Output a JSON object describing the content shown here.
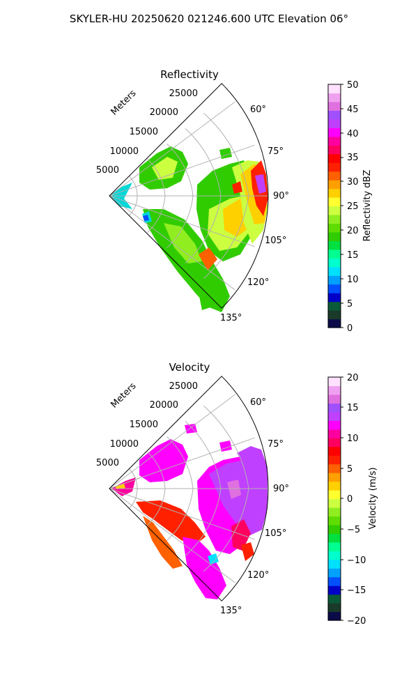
{
  "figure": {
    "suptitle": "SKYLER-HU  20250620  021246.600 UTC Elevation 06°"
  },
  "chart_data": [
    {
      "type": "heatmap",
      "title": "Reflectivity",
      "projection": "polar-sector",
      "radial_label": "Meters",
      "radial_ticks": [
        5000,
        10000,
        15000,
        20000,
        25000
      ],
      "radial_tick_labels": [
        "5000",
        "10000",
        "15000",
        "20000",
        "25000"
      ],
      "rlim": [
        0,
        30000
      ],
      "azimuth_range_deg": [
        45,
        135
      ],
      "angular_ticks_deg": [
        60,
        75,
        90,
        105,
        120,
        135
      ],
      "angular_tick_labels": [
        "60°",
        "75°",
        "90°",
        "105°",
        "120°",
        "135°"
      ],
      "grid": true,
      "colorbar": {
        "label": "Reflectivity dBZ",
        "ticks": [
          0,
          5,
          10,
          15,
          20,
          25,
          30,
          35,
          40,
          45,
          50
        ],
        "tick_labels": [
          "0",
          "5",
          "10",
          "15",
          "20",
          "25",
          "30",
          "35",
          "40",
          "45",
          "50"
        ],
        "range": [
          0,
          50
        ],
        "colors": [
          "#0b0b4a",
          "#1a3a2a",
          "#0a5a3a",
          "#0000c8",
          "#0050ff",
          "#00a0ff",
          "#00e0ff",
          "#00ffcc",
          "#00ff90",
          "#00e040",
          "#30cc00",
          "#60dd00",
          "#90ee20",
          "#ccff40",
          "#ffff30",
          "#ffd000",
          "#ffa000",
          "#ff6000",
          "#ff2000",
          "#ff0000",
          "#ff0060",
          "#ff00a0",
          "#ff00ff",
          "#c040ff",
          "#a050ff",
          "#e070e0",
          "#f0a0f0",
          "#ffe0ff"
        ]
      },
      "cells": [
        {
          "az": 50,
          "r": 3000,
          "v": 14
        },
        {
          "az": 70,
          "r": 9000,
          "v": 18
        },
        {
          "az": 75,
          "r": 20000,
          "v": 30
        },
        {
          "az": 85,
          "r": 24000,
          "v": 42
        },
        {
          "az": 92,
          "r": 26000,
          "v": 38
        },
        {
          "az": 100,
          "r": 18000,
          "v": 28
        },
        {
          "az": 110,
          "r": 14000,
          "v": 26
        },
        {
          "az": 125,
          "r": 12000,
          "v": 18
        },
        {
          "az": 130,
          "r": 8000,
          "v": 16
        }
      ]
    },
    {
      "type": "heatmap",
      "title": "Velocity",
      "projection": "polar-sector",
      "radial_label": "Meters",
      "radial_ticks": [
        5000,
        10000,
        15000,
        20000,
        25000
      ],
      "radial_tick_labels": [
        "5000",
        "10000",
        "15000",
        "20000",
        "25000"
      ],
      "rlim": [
        0,
        30000
      ],
      "azimuth_range_deg": [
        45,
        135
      ],
      "angular_ticks_deg": [
        60,
        75,
        90,
        105,
        120,
        135
      ],
      "angular_tick_labels": [
        "60°",
        "75°",
        "90°",
        "105°",
        "120°",
        "135°"
      ],
      "grid": true,
      "colorbar": {
        "label": "Velocity (m/s)",
        "ticks": [
          -20,
          -15,
          -10,
          -5,
          0,
          5,
          10,
          15,
          20
        ],
        "tick_labels": [
          "−20",
          "−15",
          "−10",
          "−5",
          "0",
          "5",
          "10",
          "15",
          "20"
        ],
        "range": [
          -20,
          20
        ],
        "colors": [
          "#0b0b4a",
          "#1a3a2a",
          "#0a5a3a",
          "#0000c8",
          "#0050ff",
          "#00a0ff",
          "#00e0ff",
          "#00ffcc",
          "#00ff90",
          "#00e040",
          "#30cc00",
          "#60dd00",
          "#90ee20",
          "#ccff40",
          "#ffff30",
          "#ffd000",
          "#ffa000",
          "#ff6000",
          "#ff2000",
          "#ff0000",
          "#ff0060",
          "#ff00a0",
          "#ff00ff",
          "#c040ff",
          "#a050ff",
          "#e070e0",
          "#f0a0f0",
          "#ffe0ff"
        ]
      },
      "cells": [
        {
          "az": 70,
          "r": 10000,
          "v": 15
        },
        {
          "az": 85,
          "r": 22000,
          "v": 14
        },
        {
          "az": 95,
          "r": 20000,
          "v": 15
        },
        {
          "az": 112,
          "r": 8000,
          "v": 10
        },
        {
          "az": 120,
          "r": 16000,
          "v": 12
        },
        {
          "az": 125,
          "r": 6000,
          "v": 8
        }
      ]
    }
  ]
}
